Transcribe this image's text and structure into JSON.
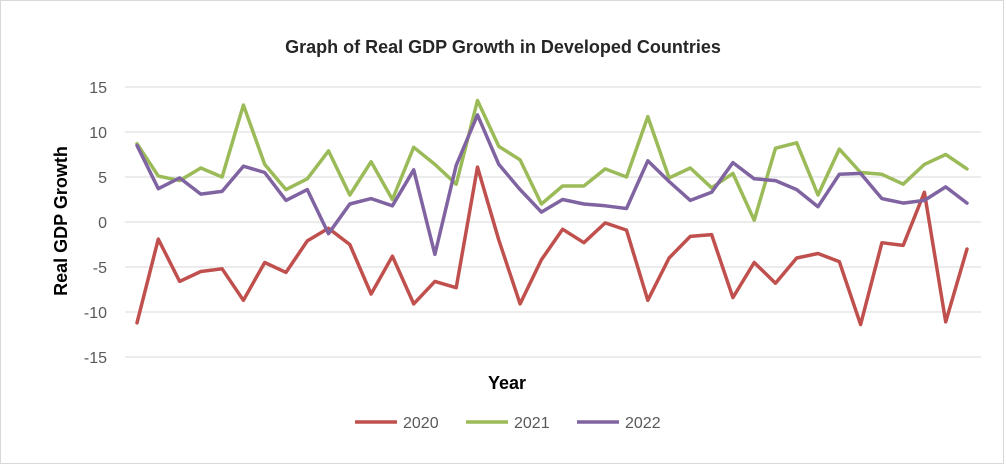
{
  "chart_data": {
    "type": "line",
    "title": "Graph of Real GDP Growth in Developed Countries",
    "xlabel": "Year",
    "ylabel": "Real GDP Growth",
    "ylim": [
      -15,
      15
    ],
    "yticks": [
      "15",
      "10",
      "5",
      "0",
      "-5",
      "-10",
      "-15"
    ],
    "grid": true,
    "legend_position": "bottom",
    "series": [
      {
        "name": "2020",
        "color": "#c0504d",
        "values": [
          -11.2,
          -1.9,
          -6.6,
          -5.5,
          -5.2,
          -8.7,
          -4.5,
          -5.6,
          -2.1,
          -0.7,
          -2.5,
          -8.0,
          -3.8,
          -9.1,
          -6.6,
          -7.3,
          6.1,
          -2.0,
          -9.1,
          -4.2,
          -0.8,
          -2.3,
          -0.1,
          -0.9,
          -8.7,
          -4.0,
          -1.6,
          -1.4,
          -8.4,
          -4.5,
          -6.8,
          -4.0,
          -3.5,
          -4.4,
          -11.4,
          -2.3,
          -2.6,
          3.3,
          -11.1,
          -3.0
        ]
      },
      {
        "name": "2021",
        "color": "#9bbb59",
        "values": [
          8.7,
          5.1,
          4.6,
          6.0,
          5.0,
          13.0,
          6.4,
          3.6,
          4.8,
          7.9,
          3.0,
          6.7,
          2.5,
          8.3,
          6.4,
          4.2,
          13.5,
          8.4,
          6.9,
          2.0,
          4.0,
          4.0,
          5.9,
          5.0,
          11.7,
          4.9,
          6.0,
          3.8,
          5.4,
          0.2,
          8.2,
          8.8,
          3.0,
          8.1,
          5.5,
          5.3,
          4.2,
          6.4,
          7.5,
          5.9
        ]
      },
      {
        "name": "2022",
        "color": "#8064a2",
        "values": [
          8.5,
          3.7,
          4.9,
          3.1,
          3.4,
          6.2,
          5.5,
          2.4,
          3.6,
          -1.3,
          2.0,
          2.6,
          1.8,
          5.8,
          -3.6,
          6.3,
          11.9,
          6.4,
          3.6,
          1.1,
          2.5,
          2.0,
          1.8,
          1.5,
          6.8,
          4.5,
          2.4,
          3.3,
          6.6,
          4.8,
          4.6,
          3.6,
          1.7,
          5.3,
          5.4,
          2.6,
          2.1,
          2.4,
          3.9,
          2.1
        ]
      }
    ]
  }
}
